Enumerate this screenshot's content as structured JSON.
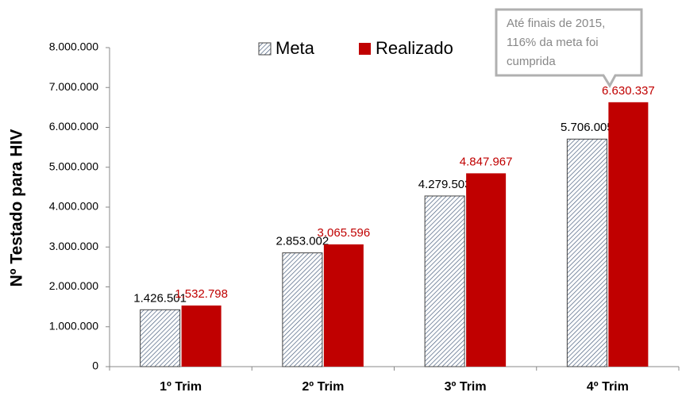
{
  "chart_data": {
    "type": "bar",
    "y_label": "Nº Testado para HIV",
    "categories": [
      "1º Trim",
      "2º Trim",
      "3º Trim",
      "4º Trim"
    ],
    "series": [
      {
        "name": "Meta",
        "color": "#4a5f7e",
        "pattern": "hatch",
        "values": [
          1426501,
          2853002,
          4279503,
          5706005
        ],
        "value_labels": [
          "1.426.501",
          "2.853.002",
          "4.279.503",
          "5.706.005"
        ]
      },
      {
        "name": "Realizado",
        "color": "#c00000",
        "values": [
          1532798,
          3065596,
          4847967,
          6630337
        ],
        "value_labels": [
          "1.532.798",
          "3.065.596",
          "4.847.967",
          "6.630.337"
        ]
      }
    ],
    "ylim": [
      0,
      8000000
    ],
    "yticks": [
      0,
      {
        "value": 1000000,
        "label": "1.000.000"
      },
      {
        "value": 2000000,
        "label": "2.000.000"
      },
      {
        "value": 3000000,
        "label": "3.000.000"
      },
      {
        "value": 4000000,
        "label": "4.000.000"
      },
      {
        "value": 5000000,
        "label": "5.000.000"
      },
      {
        "value": 6000000,
        "label": "6.000.000"
      },
      {
        "value": 7000000,
        "label": "7.000.000"
      },
      {
        "value": 8000000,
        "label": "8.000.000"
      }
    ],
    "legend": "top",
    "annotation": [
      "Até finais de 2015,",
      "116% da meta foi",
      "cumprida"
    ]
  }
}
